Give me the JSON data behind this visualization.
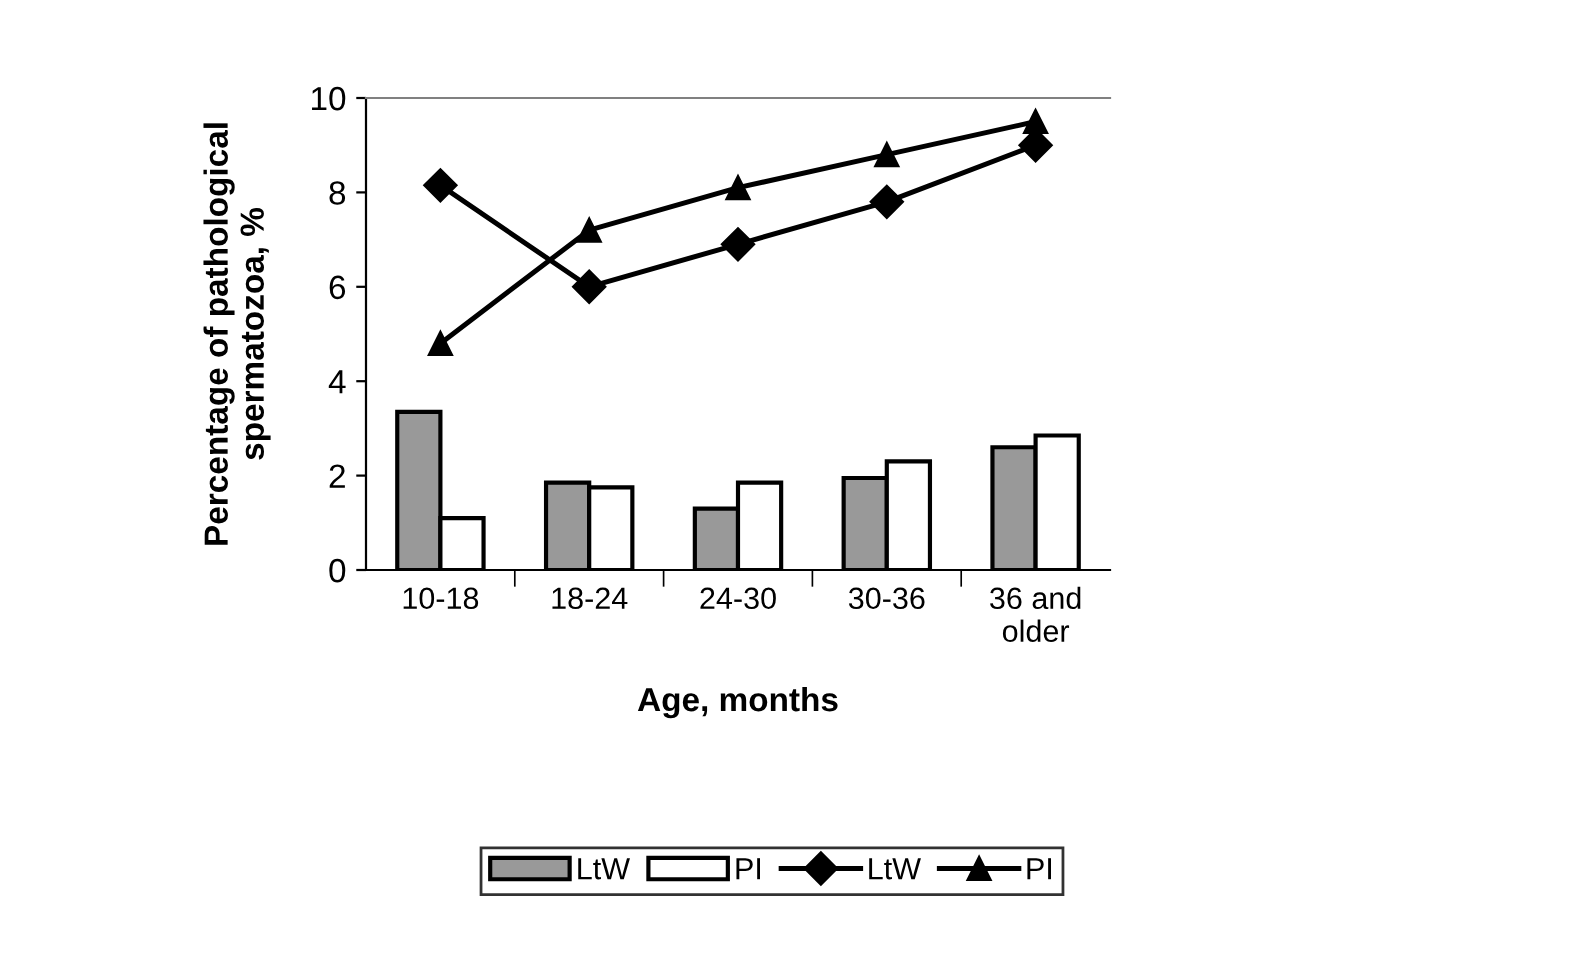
{
  "chart_data": {
    "type": "bar",
    "xlabel": "Age, months",
    "ylabel": "Percentage of pathological\nspermatozoa, %",
    "categories": [
      "10-18",
      "18-24",
      "24-30",
      "30-36",
      "36 and\nolder"
    ],
    "series": [
      {
        "name": "LtW",
        "color": "#999999",
        "values": [
          3.35,
          1.85,
          1.3,
          1.95,
          2.6
        ]
      },
      {
        "name": "PI",
        "color": "#ffffff",
        "values": [
          1.1,
          1.75,
          1.85,
          2.3,
          2.85
        ]
      },
      {
        "name": "LtW",
        "type": "line",
        "color": "#000000",
        "marker": "diamond",
        "values": [
          8.15,
          6.0,
          6.9,
          7.8,
          9.0
        ]
      },
      {
        "name": "PI",
        "type": "line",
        "color": "#000000",
        "marker": "triangle",
        "values": [
          4.8,
          7.2,
          8.1,
          8.8,
          9.5
        ]
      }
    ],
    "ylim": [
      0,
      10
    ],
    "yticks": [
      0,
      2,
      4,
      6,
      8,
      10
    ],
    "grid": false,
    "legend": "bottom"
  }
}
